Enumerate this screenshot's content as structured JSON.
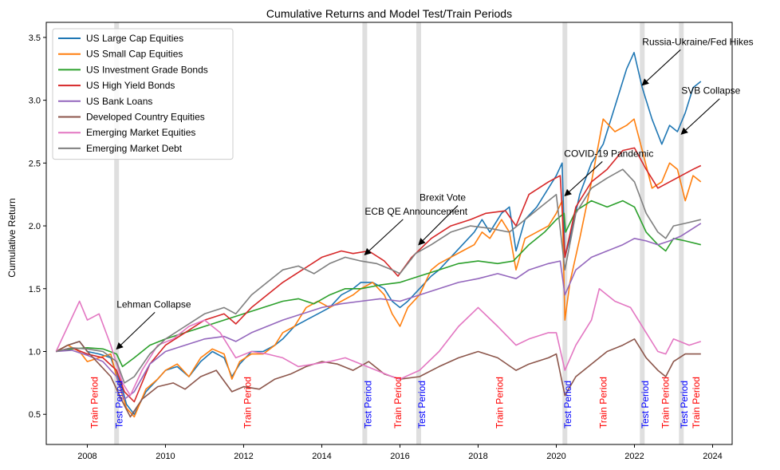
{
  "chart_data": {
    "type": "line",
    "title": "Cumulative Returns and Model Test/Train Periods",
    "xlabel": "",
    "ylabel": "Cumulative Return",
    "xlim": [
      2006.95,
      2024.5
    ],
    "ylim": [
      0.26,
      3.62
    ],
    "x_ticks": [
      2008,
      2010,
      2012,
      2014,
      2016,
      2018,
      2020,
      2022,
      2024
    ],
    "y_ticks": [
      0.5,
      1.0,
      1.5,
      2.0,
      2.5,
      3.0,
      3.5
    ],
    "grid": false,
    "legend_position": "top-left",
    "series": [
      {
        "name": "US Large Cap Equities",
        "color": "#1f77b4",
        "x": [
          2007.2,
          2007.5,
          2007.8,
          2008.0,
          2008.3,
          2008.6,
          2008.75,
          2008.9,
          2009.0,
          2009.2,
          2009.5,
          2009.8,
          2010.0,
          2010.3,
          2010.6,
          2010.9,
          2011.2,
          2011.5,
          2011.7,
          2011.9,
          2012.2,
          2012.5,
          2012.8,
          2013.0,
          2013.3,
          2013.6,
          2013.9,
          2014.2,
          2014.5,
          2014.8,
          2015.0,
          2015.3,
          2015.6,
          2015.8,
          2016.0,
          2016.2,
          2016.5,
          2016.8,
          2017.0,
          2017.3,
          2017.6,
          2017.9,
          2018.1,
          2018.3,
          2018.6,
          2018.8,
          2018.97,
          2019.2,
          2019.5,
          2019.8,
          2020.0,
          2020.15,
          2020.22,
          2020.35,
          2020.6,
          2020.9,
          2021.2,
          2021.5,
          2021.8,
          2021.99,
          2022.2,
          2022.45,
          2022.7,
          2022.9,
          2023.1,
          2023.3,
          2023.5,
          2023.7
        ],
        "values": [
          1.0,
          1.05,
          1.08,
          1.0,
          0.98,
          0.95,
          0.82,
          0.7,
          0.58,
          0.5,
          0.68,
          0.78,
          0.85,
          0.88,
          0.8,
          0.92,
          1.0,
          0.95,
          0.8,
          0.9,
          1.0,
          1.0,
          1.05,
          1.1,
          1.2,
          1.25,
          1.3,
          1.35,
          1.45,
          1.5,
          1.55,
          1.55,
          1.5,
          1.4,
          1.35,
          1.4,
          1.5,
          1.6,
          1.65,
          1.75,
          1.85,
          1.95,
          2.05,
          1.95,
          2.1,
          2.15,
          1.8,
          2.05,
          2.15,
          2.3,
          2.4,
          2.5,
          1.75,
          1.9,
          2.25,
          2.5,
          2.65,
          2.95,
          3.25,
          3.38,
          3.1,
          2.85,
          2.65,
          2.8,
          2.75,
          2.9,
          3.1,
          3.15
        ]
      },
      {
        "name": "US Small Cap Equities",
        "color": "#ff7f0e",
        "x": [
          2007.2,
          2007.5,
          2007.8,
          2008.0,
          2008.3,
          2008.6,
          2008.75,
          2008.9,
          2009.0,
          2009.2,
          2009.5,
          2009.8,
          2010.0,
          2010.3,
          2010.6,
          2010.9,
          2011.2,
          2011.5,
          2011.7,
          2011.9,
          2012.2,
          2012.5,
          2012.8,
          2013.0,
          2013.3,
          2013.6,
          2013.9,
          2014.2,
          2014.5,
          2014.8,
          2015.0,
          2015.3,
          2015.6,
          2015.8,
          2016.0,
          2016.2,
          2016.5,
          2016.8,
          2017.0,
          2017.3,
          2017.6,
          2017.9,
          2018.1,
          2018.3,
          2018.6,
          2018.8,
          2018.97,
          2019.2,
          2019.5,
          2019.8,
          2020.0,
          2020.15,
          2020.22,
          2020.35,
          2020.6,
          2020.9,
          2021.2,
          2021.5,
          2021.8,
          2021.99,
          2022.2,
          2022.45,
          2022.7,
          2022.9,
          2023.1,
          2023.3,
          2023.5,
          2023.7
        ],
        "values": [
          1.0,
          1.05,
          1.0,
          0.92,
          0.95,
          0.98,
          0.8,
          0.65,
          0.55,
          0.48,
          0.7,
          0.78,
          0.85,
          0.9,
          0.8,
          0.95,
          1.02,
          0.98,
          0.78,
          0.92,
          0.98,
          0.98,
          1.05,
          1.15,
          1.2,
          1.35,
          1.4,
          1.35,
          1.4,
          1.45,
          1.5,
          1.55,
          1.45,
          1.3,
          1.2,
          1.35,
          1.45,
          1.65,
          1.7,
          1.75,
          1.8,
          1.85,
          1.95,
          1.9,
          2.05,
          1.95,
          1.65,
          1.9,
          1.95,
          2.0,
          2.1,
          2.2,
          1.25,
          1.55,
          1.9,
          2.35,
          2.85,
          2.75,
          2.8,
          2.85,
          2.6,
          2.3,
          2.35,
          2.5,
          2.45,
          2.2,
          2.4,
          2.35
        ]
      },
      {
        "name": "US Investment Grade Bonds",
        "color": "#2ca02c",
        "x": [
          2007.2,
          2007.6,
          2008.0,
          2008.4,
          2008.75,
          2008.9,
          2009.2,
          2009.6,
          2010.0,
          2010.5,
          2011.0,
          2011.5,
          2012.0,
          2012.5,
          2013.0,
          2013.4,
          2013.8,
          2014.2,
          2014.6,
          2015.0,
          2015.5,
          2016.0,
          2016.5,
          2017.0,
          2017.5,
          2018.0,
          2018.5,
          2018.9,
          2019.3,
          2019.7,
          2020.0,
          2020.2,
          2020.24,
          2020.5,
          2020.9,
          2021.3,
          2021.7,
          2022.0,
          2022.3,
          2022.6,
          2022.8,
          2023.0,
          2023.3,
          2023.7
        ],
        "values": [
          1.0,
          1.02,
          1.03,
          1.02,
          0.98,
          0.88,
          0.95,
          1.05,
          1.1,
          1.15,
          1.2,
          1.25,
          1.3,
          1.35,
          1.4,
          1.42,
          1.38,
          1.45,
          1.5,
          1.5,
          1.53,
          1.55,
          1.6,
          1.65,
          1.7,
          1.72,
          1.7,
          1.72,
          1.85,
          1.95,
          2.05,
          2.1,
          1.95,
          2.12,
          2.2,
          2.15,
          2.2,
          2.15,
          1.95,
          1.85,
          1.8,
          1.9,
          1.88,
          1.85
        ]
      },
      {
        "name": "US High Yield Bonds",
        "color": "#d62728",
        "x": [
          2007.2,
          2007.6,
          2008.0,
          2008.4,
          2008.75,
          2008.95,
          2009.2,
          2009.6,
          2010.0,
          2010.5,
          2011.0,
          2011.5,
          2011.8,
          2012.2,
          2012.6,
          2013.0,
          2013.5,
          2014.0,
          2014.5,
          2014.8,
          2015.2,
          2015.6,
          2015.95,
          2016.3,
          2016.8,
          2017.3,
          2017.8,
          2018.2,
          2018.7,
          2018.97,
          2019.3,
          2019.8,
          2020.1,
          2020.22,
          2020.5,
          2020.9,
          2021.3,
          2021.7,
          2022.0,
          2022.3,
          2022.6,
          2022.9,
          2023.2,
          2023.5,
          2023.7
        ],
        "values": [
          1.0,
          1.03,
          0.98,
          0.95,
          0.85,
          0.68,
          0.6,
          0.9,
          1.05,
          1.15,
          1.25,
          1.3,
          1.22,
          1.35,
          1.45,
          1.55,
          1.65,
          1.75,
          1.8,
          1.78,
          1.8,
          1.72,
          1.6,
          1.75,
          1.9,
          2.0,
          2.05,
          2.1,
          2.12,
          2.0,
          2.25,
          2.35,
          2.4,
          1.75,
          2.15,
          2.35,
          2.45,
          2.6,
          2.62,
          2.45,
          2.3,
          2.35,
          2.4,
          2.45,
          2.48
        ]
      },
      {
        "name": "US Bank Loans",
        "color": "#9467bd",
        "x": [
          2007.2,
          2007.6,
          2008.0,
          2008.4,
          2008.75,
          2008.95,
          2009.2,
          2009.6,
          2010.0,
          2010.5,
          2011.0,
          2011.5,
          2011.8,
          2012.2,
          2012.6,
          2013.0,
          2013.5,
          2014.0,
          2014.5,
          2015.0,
          2015.5,
          2016.0,
          2016.5,
          2017.0,
          2017.5,
          2018.0,
          2018.5,
          2018.97,
          2019.3,
          2019.8,
          2020.1,
          2020.22,
          2020.5,
          2020.9,
          2021.3,
          2021.7,
          2022.0,
          2022.3,
          2022.6,
          2022.9,
          2023.2,
          2023.5,
          2023.7
        ],
        "values": [
          1.0,
          1.01,
          0.97,
          0.92,
          0.8,
          0.62,
          0.68,
          0.9,
          1.0,
          1.05,
          1.1,
          1.12,
          1.08,
          1.15,
          1.2,
          1.25,
          1.3,
          1.35,
          1.38,
          1.4,
          1.42,
          1.4,
          1.45,
          1.5,
          1.55,
          1.58,
          1.62,
          1.58,
          1.65,
          1.7,
          1.72,
          1.45,
          1.65,
          1.75,
          1.8,
          1.85,
          1.9,
          1.88,
          1.85,
          1.88,
          1.92,
          1.98,
          2.02
        ]
      },
      {
        "name": "Developed Country Equities",
        "color": "#8c564b",
        "x": [
          2007.2,
          2007.5,
          2007.8,
          2008.0,
          2008.3,
          2008.6,
          2008.9,
          2009.1,
          2009.4,
          2009.8,
          2010.2,
          2010.5,
          2010.9,
          2011.3,
          2011.7,
          2012.0,
          2012.4,
          2012.8,
          2013.2,
          2013.6,
          2014.0,
          2014.4,
          2014.8,
          2015.2,
          2015.6,
          2016.0,
          2016.5,
          2017.0,
          2017.5,
          2018.0,
          2018.5,
          2018.97,
          2019.3,
          2019.8,
          2020.0,
          2020.22,
          2020.5,
          2020.9,
          2021.3,
          2021.7,
          2022.0,
          2022.3,
          2022.6,
          2022.8,
          2023.0,
          2023.3,
          2023.7
        ],
        "values": [
          1.0,
          1.05,
          1.08,
          1.0,
          0.9,
          0.8,
          0.6,
          0.48,
          0.62,
          0.72,
          0.75,
          0.7,
          0.8,
          0.85,
          0.68,
          0.72,
          0.7,
          0.78,
          0.82,
          0.88,
          0.92,
          0.9,
          0.85,
          0.92,
          0.82,
          0.78,
          0.8,
          0.88,
          0.95,
          1.0,
          0.95,
          0.85,
          0.9,
          0.95,
          0.98,
          0.65,
          0.8,
          0.9,
          1.0,
          1.05,
          1.1,
          0.95,
          0.85,
          0.8,
          0.92,
          0.98,
          0.98
        ]
      },
      {
        "name": "Emerging Market Equities",
        "color": "#e377c2",
        "x": [
          2007.2,
          2007.5,
          2007.8,
          2008.0,
          2008.3,
          2008.6,
          2008.9,
          2009.1,
          2009.4,
          2009.8,
          2010.2,
          2010.6,
          2011.0,
          2011.4,
          2011.8,
          2012.2,
          2012.6,
          2013.0,
          2013.4,
          2013.8,
          2014.2,
          2014.6,
          2015.0,
          2015.4,
          2015.8,
          2016.0,
          2016.5,
          2017.0,
          2017.5,
          2018.0,
          2018.5,
          2018.97,
          2019.3,
          2019.8,
          2020.0,
          2020.22,
          2020.5,
          2020.9,
          2021.1,
          2021.5,
          2021.9,
          2022.3,
          2022.6,
          2022.8,
          2023.0,
          2023.4,
          2023.7
        ],
        "values": [
          1.0,
          1.2,
          1.4,
          1.25,
          1.3,
          1.05,
          0.75,
          0.65,
          0.85,
          1.05,
          1.1,
          1.2,
          1.25,
          1.15,
          0.95,
          1.0,
          0.98,
          0.95,
          0.88,
          0.9,
          0.92,
          0.95,
          0.9,
          0.85,
          0.8,
          0.78,
          0.85,
          1.0,
          1.2,
          1.35,
          1.2,
          1.05,
          1.1,
          1.15,
          1.15,
          0.85,
          1.05,
          1.25,
          1.5,
          1.4,
          1.35,
          1.15,
          1.0,
          0.98,
          1.1,
          1.05,
          1.08
        ]
      },
      {
        "name": "Emerging Market Debt",
        "color": "#7f7f7f",
        "x": [
          2007.2,
          2007.6,
          2008.0,
          2008.4,
          2008.75,
          2008.95,
          2009.2,
          2009.6,
          2010.0,
          2010.5,
          2011.0,
          2011.5,
          2011.8,
          2012.2,
          2012.6,
          2013.0,
          2013.4,
          2013.8,
          2014.2,
          2014.6,
          2015.0,
          2015.4,
          2015.8,
          2016.0,
          2016.4,
          2016.8,
          2017.3,
          2017.8,
          2018.3,
          2018.8,
          2019.2,
          2019.6,
          2020.0,
          2020.22,
          2020.5,
          2020.9,
          2021.3,
          2021.7,
          2022.0,
          2022.3,
          2022.6,
          2022.8,
          2023.0,
          2023.3,
          2023.7
        ],
        "values": [
          1.0,
          1.03,
          1.02,
          1.0,
          0.92,
          0.75,
          0.8,
          0.98,
          1.1,
          1.2,
          1.3,
          1.35,
          1.3,
          1.45,
          1.55,
          1.65,
          1.68,
          1.62,
          1.7,
          1.75,
          1.72,
          1.7,
          1.65,
          1.62,
          1.78,
          1.85,
          1.95,
          2.0,
          1.98,
          1.95,
          2.05,
          2.15,
          2.25,
          1.65,
          2.1,
          2.3,
          2.38,
          2.45,
          2.35,
          2.1,
          1.95,
          1.9,
          2.0,
          2.02,
          2.05
        ]
      }
    ],
    "shaded_periods": [
      2008.75,
      2016.48,
      2015.1,
      2020.22,
      2022.2,
      2023.2
    ],
    "period_labels": [
      {
        "x": 2008.18,
        "text": "Train Period",
        "color": "#ff0000"
      },
      {
        "x": 2008.82,
        "text": "Test Period",
        "color": "#0000ff"
      },
      {
        "x": 2012.1,
        "text": "Train Period",
        "color": "#ff0000"
      },
      {
        "x": 2015.18,
        "text": "Test Period",
        "color": "#0000ff"
      },
      {
        "x": 2015.95,
        "text": "Train Period",
        "color": "#ff0000"
      },
      {
        "x": 2016.56,
        "text": "Test Period",
        "color": "#0000ff"
      },
      {
        "x": 2018.55,
        "text": "Train Period",
        "color": "#ff0000"
      },
      {
        "x": 2020.3,
        "text": "Test Period",
        "color": "#0000ff"
      },
      {
        "x": 2021.2,
        "text": "Train Period",
        "color": "#ff0000"
      },
      {
        "x": 2022.28,
        "text": "Test Period",
        "color": "#0000ff"
      },
      {
        "x": 2022.8,
        "text": "Train Period",
        "color": "#ff0000"
      },
      {
        "x": 2023.28,
        "text": "Test Period",
        "color": "#0000ff"
      },
      {
        "x": 2023.58,
        "text": "Train Period",
        "color": "#ff0000"
      }
    ],
    "annotations": [
      {
        "text": "Lehman Collapse",
        "point": [
          2008.75,
          1.02
        ],
        "text_pos": [
          2008.75,
          1.35
        ]
      },
      {
        "text": "ECB QE Announcement",
        "point": [
          2015.1,
          1.77
        ],
        "text_pos": [
          2015.1,
          2.09
        ]
      },
      {
        "text": "Brexit Vote",
        "point": [
          2016.48,
          1.85
        ],
        "text_pos": [
          2016.5,
          2.2
        ]
      },
      {
        "text": "COVID-19 Pandemic",
        "point": [
          2020.22,
          2.24
        ],
        "text_pos": [
          2020.2,
          2.55
        ]
      },
      {
        "text": "Russia-Ukraine/Fed Hikes",
        "point": [
          2022.2,
          3.12
        ],
        "text_pos": [
          2022.2,
          3.44
        ]
      },
      {
        "text": "SVB Collapse",
        "point": [
          2023.2,
          2.73
        ],
        "text_pos": [
          2023.2,
          3.05
        ]
      }
    ]
  }
}
